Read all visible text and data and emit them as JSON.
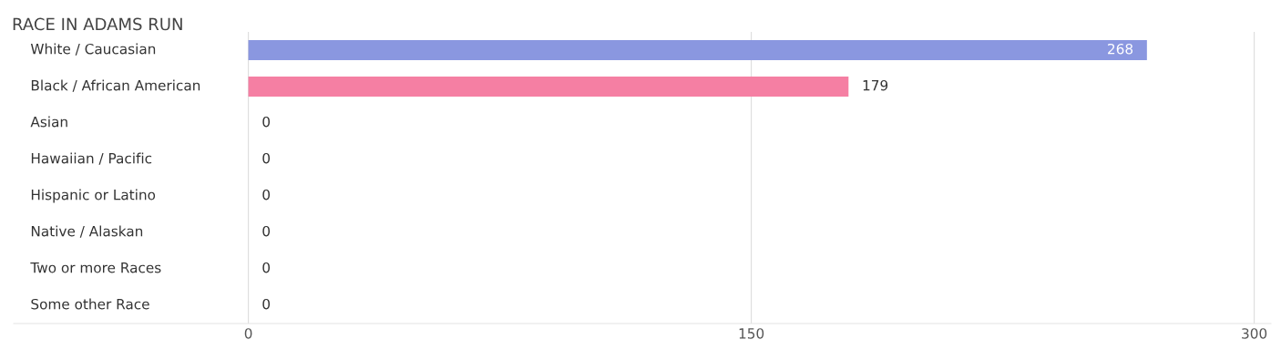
{
  "chart_data": {
    "type": "bar",
    "orientation": "horizontal",
    "title": "RACE IN ADAMS RUN",
    "categories": [
      "White / Caucasian",
      "Black / African American",
      "Asian",
      "Hawaiian / Pacific",
      "Hispanic or Latino",
      "Native / Alaskan",
      "Two or more Races",
      "Some other Race"
    ],
    "values": [
      268,
      179,
      0,
      0,
      0,
      0,
      0,
      0
    ],
    "colors": [
      "#8a97e0",
      "#f57fa3",
      "#f9c79a",
      "#f0aaa9",
      "#a9c6ee",
      "#d1afd1",
      "#7dcfd0",
      "#b4bdf0"
    ],
    "xlim": [
      -70,
      305
    ],
    "xticks": [
      0,
      150,
      300
    ],
    "grid": "x",
    "data_labels": true
  }
}
